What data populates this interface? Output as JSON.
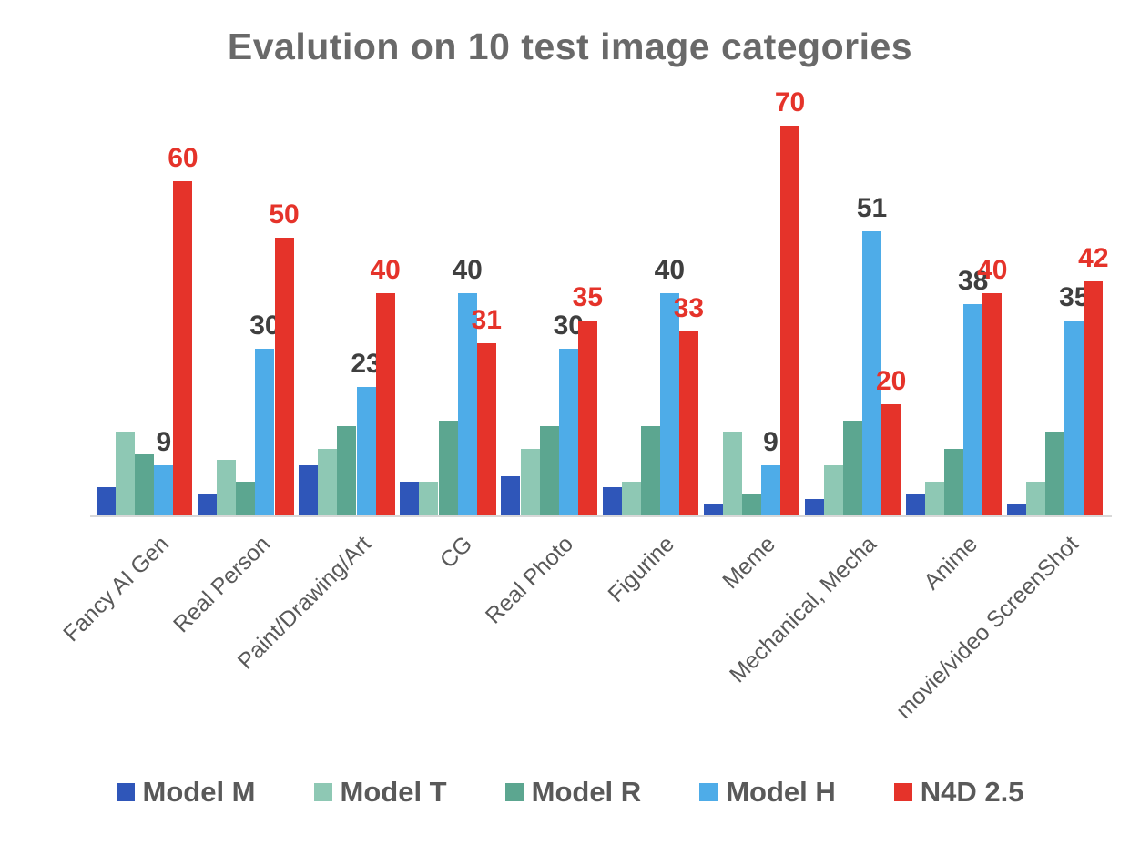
{
  "title": "Evalution on 10 test image categories",
  "chart_data": {
    "type": "bar",
    "title": "Evalution on 10 test image categories",
    "categories": [
      "Fancy AI Gen",
      "Real Person",
      "Paint/Drawing/Art",
      "CG",
      "Real Photo",
      "Figurine",
      "Meme",
      "Mechanical,  Mecha",
      "Anime",
      "movie/video ScreenShot"
    ],
    "series": [
      {
        "name": "Model M",
        "color": "#2F56B9",
        "values": [
          5,
          4,
          9,
          6,
          7,
          5,
          2,
          3,
          4,
          2
        ],
        "show_value_labels": false,
        "label_color": null
      },
      {
        "name": "Model T",
        "color": "#8EC8B4",
        "values": [
          15,
          10,
          12,
          6,
          12,
          6,
          15,
          9,
          6,
          6
        ],
        "show_value_labels": false,
        "label_color": null
      },
      {
        "name": "Model R",
        "color": "#5CA690",
        "values": [
          11,
          6,
          16,
          17,
          16,
          16,
          4,
          17,
          12,
          15
        ],
        "show_value_labels": false,
        "label_color": null
      },
      {
        "name": "Model H",
        "color": "#4EACE8",
        "values": [
          9,
          30,
          23,
          40,
          30,
          40,
          9,
          51,
          38,
          35
        ],
        "show_value_labels": true,
        "label_color": "#3F3F3F"
      },
      {
        "name": "N4D 2.5",
        "color": "#E5332A",
        "values": [
          60,
          50,
          40,
          31,
          35,
          33,
          70,
          20,
          40,
          42
        ],
        "show_value_labels": true,
        "label_color": "#E5332A"
      }
    ],
    "ylim": [
      0,
      75
    ],
    "grid": false,
    "y_axis_visible": false,
    "legend_position": "bottom",
    "x_label_rotation_deg": 45
  },
  "colors": {
    "background": "#FFFFFF",
    "title_text": "#696969",
    "category_text": "#595959",
    "legend_text": "#595959",
    "axis_line": "#D8D8D8",
    "model_m": "#2F56B9",
    "model_t": "#8EC8B4",
    "model_r": "#5CA690",
    "model_h": "#4EACE8",
    "n4d": "#E5332A"
  },
  "legend": {
    "items": [
      {
        "label": "Model M",
        "color": "#2F56B9"
      },
      {
        "label": "Model T",
        "color": "#8EC8B4"
      },
      {
        "label": "Model R",
        "color": "#5CA690"
      },
      {
        "label": "Model H",
        "color": "#4EACE8"
      },
      {
        "label": "N4D 2.5",
        "color": "#E5332A"
      }
    ]
  }
}
